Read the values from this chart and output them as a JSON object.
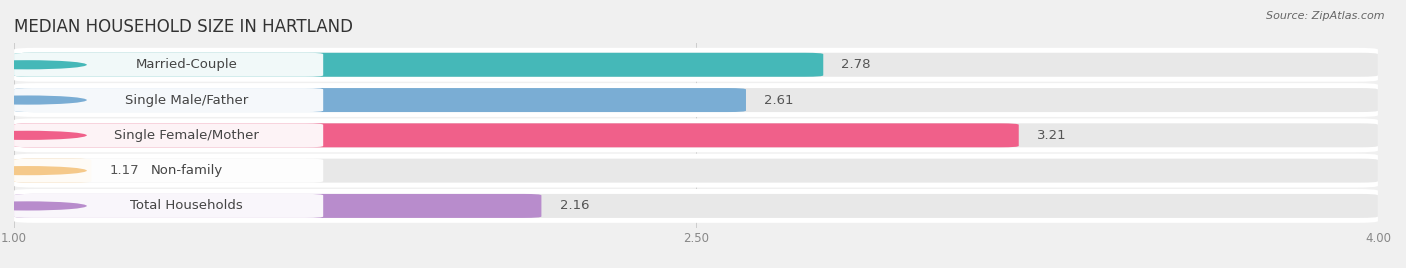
{
  "title": "MEDIAN HOUSEHOLD SIZE IN HARTLAND",
  "source": "Source: ZipAtlas.com",
  "categories": [
    "Married-Couple",
    "Single Male/Father",
    "Single Female/Mother",
    "Non-family",
    "Total Households"
  ],
  "values": [
    2.78,
    2.61,
    3.21,
    1.17,
    2.16
  ],
  "bar_colors": [
    "#45b8b8",
    "#7aadd4",
    "#f0608a",
    "#f5c98a",
    "#b88ccc"
  ],
  "xlim": [
    1.0,
    4.0
  ],
  "xmin": 1.0,
  "xmax": 4.0,
  "xticks": [
    1.0,
    2.5,
    4.0
  ],
  "background_color": "#f0f0f0",
  "row_bg_color": "#ffffff",
  "bar_bg_color": "#e8e8e8",
  "title_fontsize": 12,
  "label_fontsize": 9.5,
  "value_fontsize": 9.5
}
